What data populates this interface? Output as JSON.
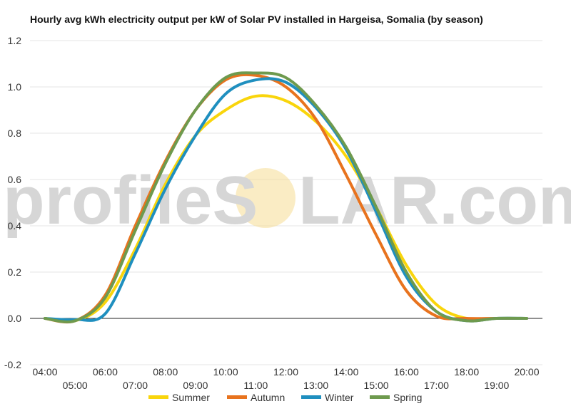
{
  "watermark": {
    "left": "profileS",
    "right": "LAR.com",
    "sun_color": "#f5d98a"
  },
  "chart_data": {
    "type": "line",
    "title": "Hourly avg kWh electricity output per kW of Solar PV installed in Hargeisa, Somalia (by season)",
    "xlabel": "",
    "ylabel": "",
    "x_ticks_upper": [
      "04:00",
      "06:00",
      "08:00",
      "10:00",
      "12:00",
      "14:00",
      "16:00",
      "18:00",
      "20:00"
    ],
    "x_ticks_lower": [
      "05:00",
      "07:00",
      "09:00",
      "11:00",
      "13:00",
      "15:00",
      "17:00",
      "19:00"
    ],
    "x_range": [
      4,
      20
    ],
    "ylim": [
      -0.2,
      1.2
    ],
    "y_ticks": [
      "-0.2",
      "0.0",
      "0.2",
      "0.4",
      "0.6",
      "0.8",
      "1.0",
      "1.2"
    ],
    "grid": true,
    "legend_position": "bottom",
    "x_hours": [
      4,
      5,
      6,
      7,
      8,
      9,
      10,
      11,
      12,
      13,
      14,
      15,
      16,
      17,
      18,
      19,
      20
    ],
    "series": [
      {
        "name": "Summer",
        "color": "#f9d50c",
        "values": [
          0,
          -0.01,
          0.07,
          0.3,
          0.58,
          0.79,
          0.9,
          0.96,
          0.94,
          0.85,
          0.7,
          0.48,
          0.23,
          0.06,
          0,
          0,
          0
        ]
      },
      {
        "name": "Autumn",
        "color": "#e8731e",
        "values": [
          0,
          -0.01,
          0.1,
          0.4,
          0.68,
          0.9,
          1.03,
          1.05,
          1.0,
          0.86,
          0.62,
          0.36,
          0.12,
          0.01,
          0,
          0,
          0
        ]
      },
      {
        "name": "Winter",
        "color": "#1f8fbf",
        "values": [
          0,
          -0.005,
          0.02,
          0.28,
          0.56,
          0.79,
          0.97,
          1.03,
          1.02,
          0.91,
          0.73,
          0.46,
          0.18,
          0.03,
          -0.01,
          0,
          0
        ]
      },
      {
        "name": "Spring",
        "color": "#6e9a4e",
        "values": [
          0,
          -0.01,
          0.09,
          0.38,
          0.67,
          0.9,
          1.04,
          1.06,
          1.04,
          0.92,
          0.74,
          0.48,
          0.2,
          0.03,
          -0.01,
          0,
          0
        ]
      }
    ]
  }
}
